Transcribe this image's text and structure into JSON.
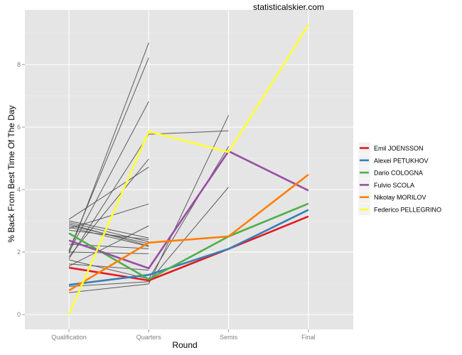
{
  "chart_data": {
    "type": "line",
    "title": "",
    "annotation": "statisticalskier.com",
    "xlabel": "Round",
    "ylabel": "% Back From Best Time Of The Day",
    "categories": [
      "Qualification",
      "Quarters",
      "Semis",
      "Final"
    ],
    "ylim": [
      -0.45,
      9.6
    ],
    "yticks": [
      0,
      2,
      4,
      6,
      8
    ],
    "grid": true,
    "legend_position": "right",
    "highlight_series": [
      {
        "name": "Emil JOENSSON",
        "color": "#E41A1C",
        "values": [
          1.5,
          1.09,
          2.1,
          3.14
        ]
      },
      {
        "name": "Alexei PETUKHOV",
        "color": "#377EB8",
        "values": [
          0.95,
          1.27,
          2.1,
          3.35
        ]
      },
      {
        "name": "Dario COLOGNA",
        "color": "#4DAF4A",
        "values": [
          2.6,
          1.13,
          2.5,
          3.55
        ]
      },
      {
        "name": "Fulvio SCOLA",
        "color": "#984EA3",
        "values": [
          2.37,
          1.48,
          5.23,
          3.97
        ]
      },
      {
        "name": "Nikolay MORILOV",
        "color": "#FF7F00",
        "values": [
          0.77,
          2.3,
          2.5,
          4.48
        ]
      },
      {
        "name": "Federico PELLEGRINO",
        "color": "#FFFF33",
        "values": [
          0.0,
          5.86,
          5.2,
          9.27
        ]
      }
    ],
    "background_series": [
      {
        "values": [
          1.95,
          8.7,
          null,
          null
        ]
      },
      {
        "values": [
          2.05,
          8.22,
          null,
          null
        ]
      },
      {
        "values": [
          2.0,
          6.82,
          null,
          null
        ]
      },
      {
        "values": [
          1.78,
          5.77,
          5.88,
          null
        ]
      },
      {
        "values": [
          1.85,
          4.98,
          null,
          null
        ]
      },
      {
        "values": [
          3.05,
          4.72,
          null,
          null
        ]
      },
      {
        "values": [
          2.75,
          3.54,
          null,
          null
        ]
      },
      {
        "values": [
          1.55,
          2.84,
          null,
          null
        ]
      },
      {
        "values": [
          3.0,
          2.45,
          null,
          null
        ]
      },
      {
        "values": [
          2.95,
          2.33,
          null,
          null
        ]
      },
      {
        "values": [
          2.85,
          2.27,
          null,
          null
        ]
      },
      {
        "values": [
          2.8,
          2.18,
          null,
          null
        ]
      },
      {
        "values": [
          2.25,
          2.11,
          null,
          null
        ]
      },
      {
        "values": [
          2.0,
          1.95,
          null,
          null
        ]
      },
      {
        "values": [
          1.75,
          1.14,
          5.38,
          null
        ]
      },
      {
        "values": [
          0.9,
          1.05,
          4.08,
          null
        ]
      },
      {
        "values": [
          0.7,
          0.98,
          6.38,
          null
        ]
      },
      {
        "values": [
          2.9,
          2.2,
          null,
          null
        ]
      },
      {
        "values": [
          1.62,
          1.42,
          null,
          null
        ]
      },
      {
        "values": [
          2.7,
          2.4,
          null,
          null
        ]
      }
    ]
  }
}
